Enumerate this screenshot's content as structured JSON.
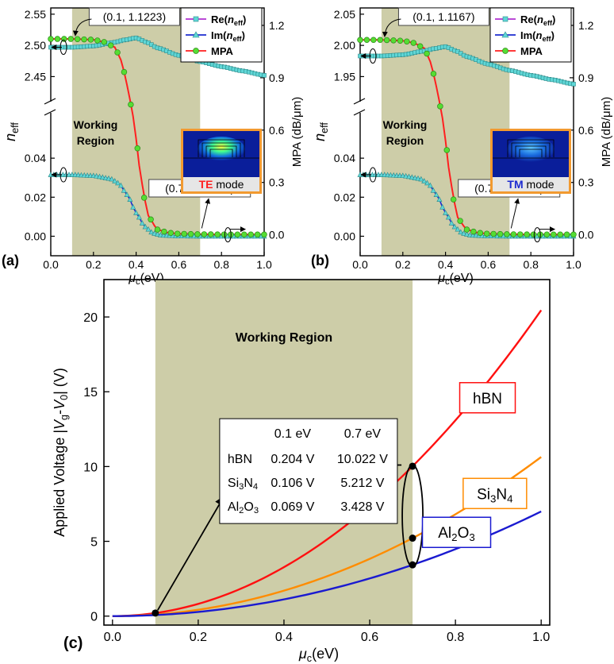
{
  "figure": {
    "panel_a_label": "(a)",
    "panel_b_label": "(b)",
    "panel_c_label": "(c)"
  },
  "colors": {
    "working_region": "#cdcda8",
    "re": "#5fd6d6",
    "im": "#1d2bd0",
    "mpa_line": "#ff1f1f",
    "mpa_marker": "#55dd33",
    "hbn": "#ff1010",
    "si3n4": "#ff8c00",
    "al2o3": "#1a1ad0"
  },
  "chart_data": [
    {
      "type": "line",
      "panel": "(a)",
      "xlabel": "μc(eV)",
      "ylabel_left": "neff",
      "ylabel_right": "MPA (dB/μm)",
      "xlim": [
        0,
        1.0
      ],
      "x_ticks": [
        "0.0",
        "0.2",
        "0.4",
        "0.6",
        "0.8",
        "1.0"
      ],
      "ylim_upper": [
        2.42,
        2.56
      ],
      "y_ticks_upper": [
        "2.45",
        "2.50",
        "2.55"
      ],
      "ylim_lower": [
        -0.01,
        0.06
      ],
      "y_ticks_lower": [
        "0.00",
        "0.02",
        "0.04"
      ],
      "ylim_right": [
        -0.12,
        1.3
      ],
      "y_ticks_right": [
        "0.0",
        "0.3",
        "0.6",
        "0.9",
        "1.2"
      ],
      "working_region": [
        0.1,
        0.7
      ],
      "working_region_label": "Working Region",
      "legend": [
        "Re(neff)",
        "Im(neff)",
        "MPA"
      ],
      "inset_label": "TE mode",
      "inset_mode": "TE",
      "inset_mode_color": "#ff2020",
      "annotations": [
        "(0.1, 1.1223)",
        "(0.7, 0.00325)"
      ],
      "series": [
        {
          "name": "Re(neff)",
          "x": [
            0.0,
            0.1,
            0.2,
            0.3,
            0.35,
            0.4,
            0.45,
            0.5,
            0.6,
            0.7,
            0.8,
            0.9,
            1.0
          ],
          "y": [
            2.497,
            2.497,
            2.499,
            2.505,
            2.509,
            2.512,
            2.505,
            2.496,
            2.484,
            2.474,
            2.466,
            2.459,
            2.452
          ]
        },
        {
          "name": "Im(neff)",
          "x": [
            0.0,
            0.1,
            0.2,
            0.28,
            0.32,
            0.36,
            0.4,
            0.44,
            0.48,
            0.52,
            0.6,
            0.7,
            0.8,
            1.0
          ],
          "y": [
            0.0315,
            0.0315,
            0.031,
            0.0295,
            0.027,
            0.021,
            0.012,
            0.005,
            0.0015,
            0.0005,
            0.0001,
            0.0,
            0.0,
            0.0
          ]
        },
        {
          "name": "MPA",
          "x": [
            0.0,
            0.1,
            0.2,
            0.25,
            0.3,
            0.33,
            0.36,
            0.38,
            0.4,
            0.42,
            0.44,
            0.46,
            0.5,
            0.55,
            0.6,
            0.7,
            0.8,
            1.0
          ],
          "y": [
            1.1223,
            1.1223,
            1.118,
            1.105,
            1.075,
            1.0,
            0.85,
            0.72,
            0.55,
            0.35,
            0.2,
            0.1,
            0.03,
            0.012,
            0.006,
            0.00325,
            0.002,
            0.0015
          ]
        }
      ]
    },
    {
      "type": "line",
      "panel": "(b)",
      "xlabel": "μc(eV)",
      "ylabel_left": "neff",
      "ylabel_right": "MPA (dB/μm)",
      "xlim": [
        0,
        1.0
      ],
      "x_ticks": [
        "0.0",
        "0.2",
        "0.4",
        "0.6",
        "0.8",
        "1.0"
      ],
      "ylim_upper": [
        1.92,
        2.06
      ],
      "y_ticks_upper": [
        "1.95",
        "2.00",
        "2.05"
      ],
      "ylim_lower": [
        -0.01,
        0.06
      ],
      "y_ticks_lower": [
        "0.00",
        "0.02",
        "0.04"
      ],
      "ylim_right": [
        -0.12,
        1.3
      ],
      "y_ticks_right": [
        "0.0",
        "0.3",
        "0.6",
        "0.9",
        "1.2"
      ],
      "working_region": [
        0.1,
        0.7
      ],
      "working_region_label": "Working Region",
      "legend": [
        "Re(neff)",
        "Im(neff)",
        "MPA"
      ],
      "inset_label": "TM mode",
      "inset_mode": "TM",
      "inset_mode_color": "#1d2bd0",
      "annotations": [
        "(0.1, 1.1167)",
        "(0.7, 0.00316)"
      ],
      "series": [
        {
          "name": "Re(neff)",
          "x": [
            0.0,
            0.1,
            0.2,
            0.3,
            0.35,
            0.4,
            0.45,
            0.5,
            0.6,
            0.7,
            0.8,
            0.9,
            1.0
          ],
          "y": [
            1.983,
            1.983,
            1.985,
            1.991,
            1.995,
            1.998,
            1.991,
            1.982,
            1.97,
            1.96,
            1.952,
            1.945,
            1.938
          ]
        },
        {
          "name": "Im(neff)",
          "x": [
            0.0,
            0.1,
            0.2,
            0.28,
            0.32,
            0.36,
            0.4,
            0.44,
            0.48,
            0.52,
            0.6,
            0.7,
            0.8,
            1.0
          ],
          "y": [
            0.0315,
            0.0315,
            0.031,
            0.0295,
            0.027,
            0.021,
            0.012,
            0.005,
            0.0015,
            0.0005,
            0.0001,
            0.0,
            0.0,
            0.0
          ]
        },
        {
          "name": "MPA",
          "x": [
            0.0,
            0.1,
            0.2,
            0.25,
            0.3,
            0.33,
            0.36,
            0.38,
            0.4,
            0.42,
            0.44,
            0.46,
            0.5,
            0.55,
            0.6,
            0.7,
            0.8,
            1.0
          ],
          "y": [
            1.1167,
            1.1167,
            1.112,
            1.1,
            1.07,
            0.99,
            0.84,
            0.71,
            0.54,
            0.34,
            0.19,
            0.09,
            0.03,
            0.012,
            0.006,
            0.00316,
            0.002,
            0.0015
          ]
        }
      ]
    },
    {
      "type": "line",
      "panel": "(c)",
      "xlabel": "μc(eV)",
      "ylabel": "Applied Voltage |Vg-V0| (V)",
      "xlim": [
        -0.02,
        1.02
      ],
      "x_ticks": [
        "0.0",
        "0.2",
        "0.4",
        "0.6",
        "0.8",
        "1.0"
      ],
      "ylim": [
        -0.6,
        22.5
      ],
      "y_ticks": [
        "0",
        "5",
        "10",
        "15",
        "20"
      ],
      "working_region": [
        0.1,
        0.7
      ],
      "working_region_label": "Working Region",
      "series": [
        {
          "name": "hBN",
          "label": "hBN",
          "exponent": 2,
          "value_at_0.1": 0.204,
          "value_at_0.7": 10.022
        },
        {
          "name": "Si3N4",
          "label": "Si3N4",
          "exponent": 2,
          "value_at_0.1": 0.106,
          "value_at_0.7": 5.212
        },
        {
          "name": "Al2O3",
          "label": "Al2O3",
          "exponent": 2,
          "value_at_0.1": 0.069,
          "value_at_0.7": 3.428
        }
      ],
      "table": {
        "headers": [
          "0.1 eV",
          "0.7 eV"
        ],
        "rows": [
          {
            "name": "hBN",
            "v1": "0.204 V",
            "v2": "10.022 V"
          },
          {
            "name": "Si3N4",
            "v1": "0.106 V",
            "v2": "5.212 V"
          },
          {
            "name": "Al2O3",
            "v1": "0.069 V",
            "v2": "3.428 V"
          }
        ]
      }
    }
  ]
}
